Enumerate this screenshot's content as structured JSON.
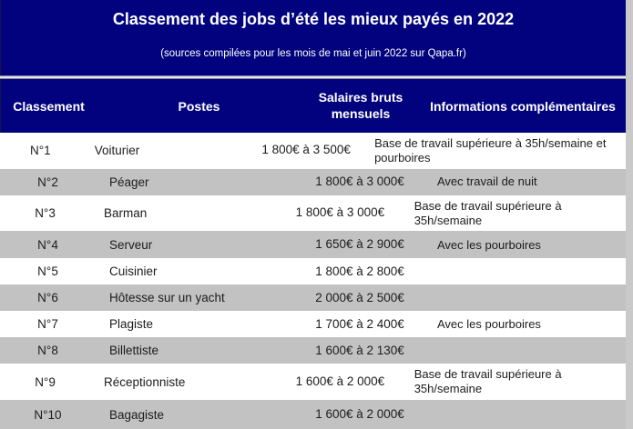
{
  "header": {
    "title": "Classement des jobs d’été les mieux payés en 2022",
    "subtitle": "(sources compilées pour les mois de mai et juin 2022 sur Qapa.fr)"
  },
  "table": {
    "columns": [
      "Classement",
      "Postes",
      "Salaires bruts mensuels",
      "Informations complémentaires"
    ],
    "rows": [
      {
        "rank": "N°1",
        "poste": "Voiturier",
        "salaire": "1 800€ à 3 500€",
        "info": "Base de travail supérieure à 35h/semaine et pourboires"
      },
      {
        "rank": "N°2",
        "poste": "Péager",
        "salaire": "1 800€ à 3 000€",
        "info": "Avec travail de nuit"
      },
      {
        "rank": "N°3",
        "poste": "Barman",
        "salaire": "1 800€ à 3 000€",
        "info": "Base de travail supérieure à 35h/semaine"
      },
      {
        "rank": "N°4",
        "poste": "Serveur",
        "salaire": "1 650€ à 2 900€",
        "info": "Avec les pourboires"
      },
      {
        "rank": "N°5",
        "poste": "Cuisinier",
        "salaire": "1 800€ à 2 800€",
        "info": ""
      },
      {
        "rank": "N°6",
        "poste": "Hôtesse sur un yacht",
        "salaire": "2 000€ à 2 500€",
        "info": ""
      },
      {
        "rank": "N°7",
        "poste": "Plagiste",
        "salaire": "1 700€ à 2 400€",
        "info": "Avec les pourboires"
      },
      {
        "rank": "N°8",
        "poste": "Billettiste",
        "salaire": "1 600€ à 2 130€",
        "info": ""
      },
      {
        "rank": "N°9",
        "poste": "Réceptionniste",
        "salaire": "1 600€ à 2 000€",
        "info": "Base de travail supérieure à 35h/semaine"
      },
      {
        "rank": "N°10",
        "poste": "Bagagiste",
        "salaire": "1 600€ à 2 000€",
        "info": ""
      }
    ]
  },
  "colors": {
    "header_navy": "#02027E",
    "row_stripe_gray": "#C2C2C2",
    "separator_light": "#E3E3E6",
    "page_background": "#C9C9C9",
    "header_text": "#FFFFFF",
    "body_text": "#1C1C1C"
  }
}
